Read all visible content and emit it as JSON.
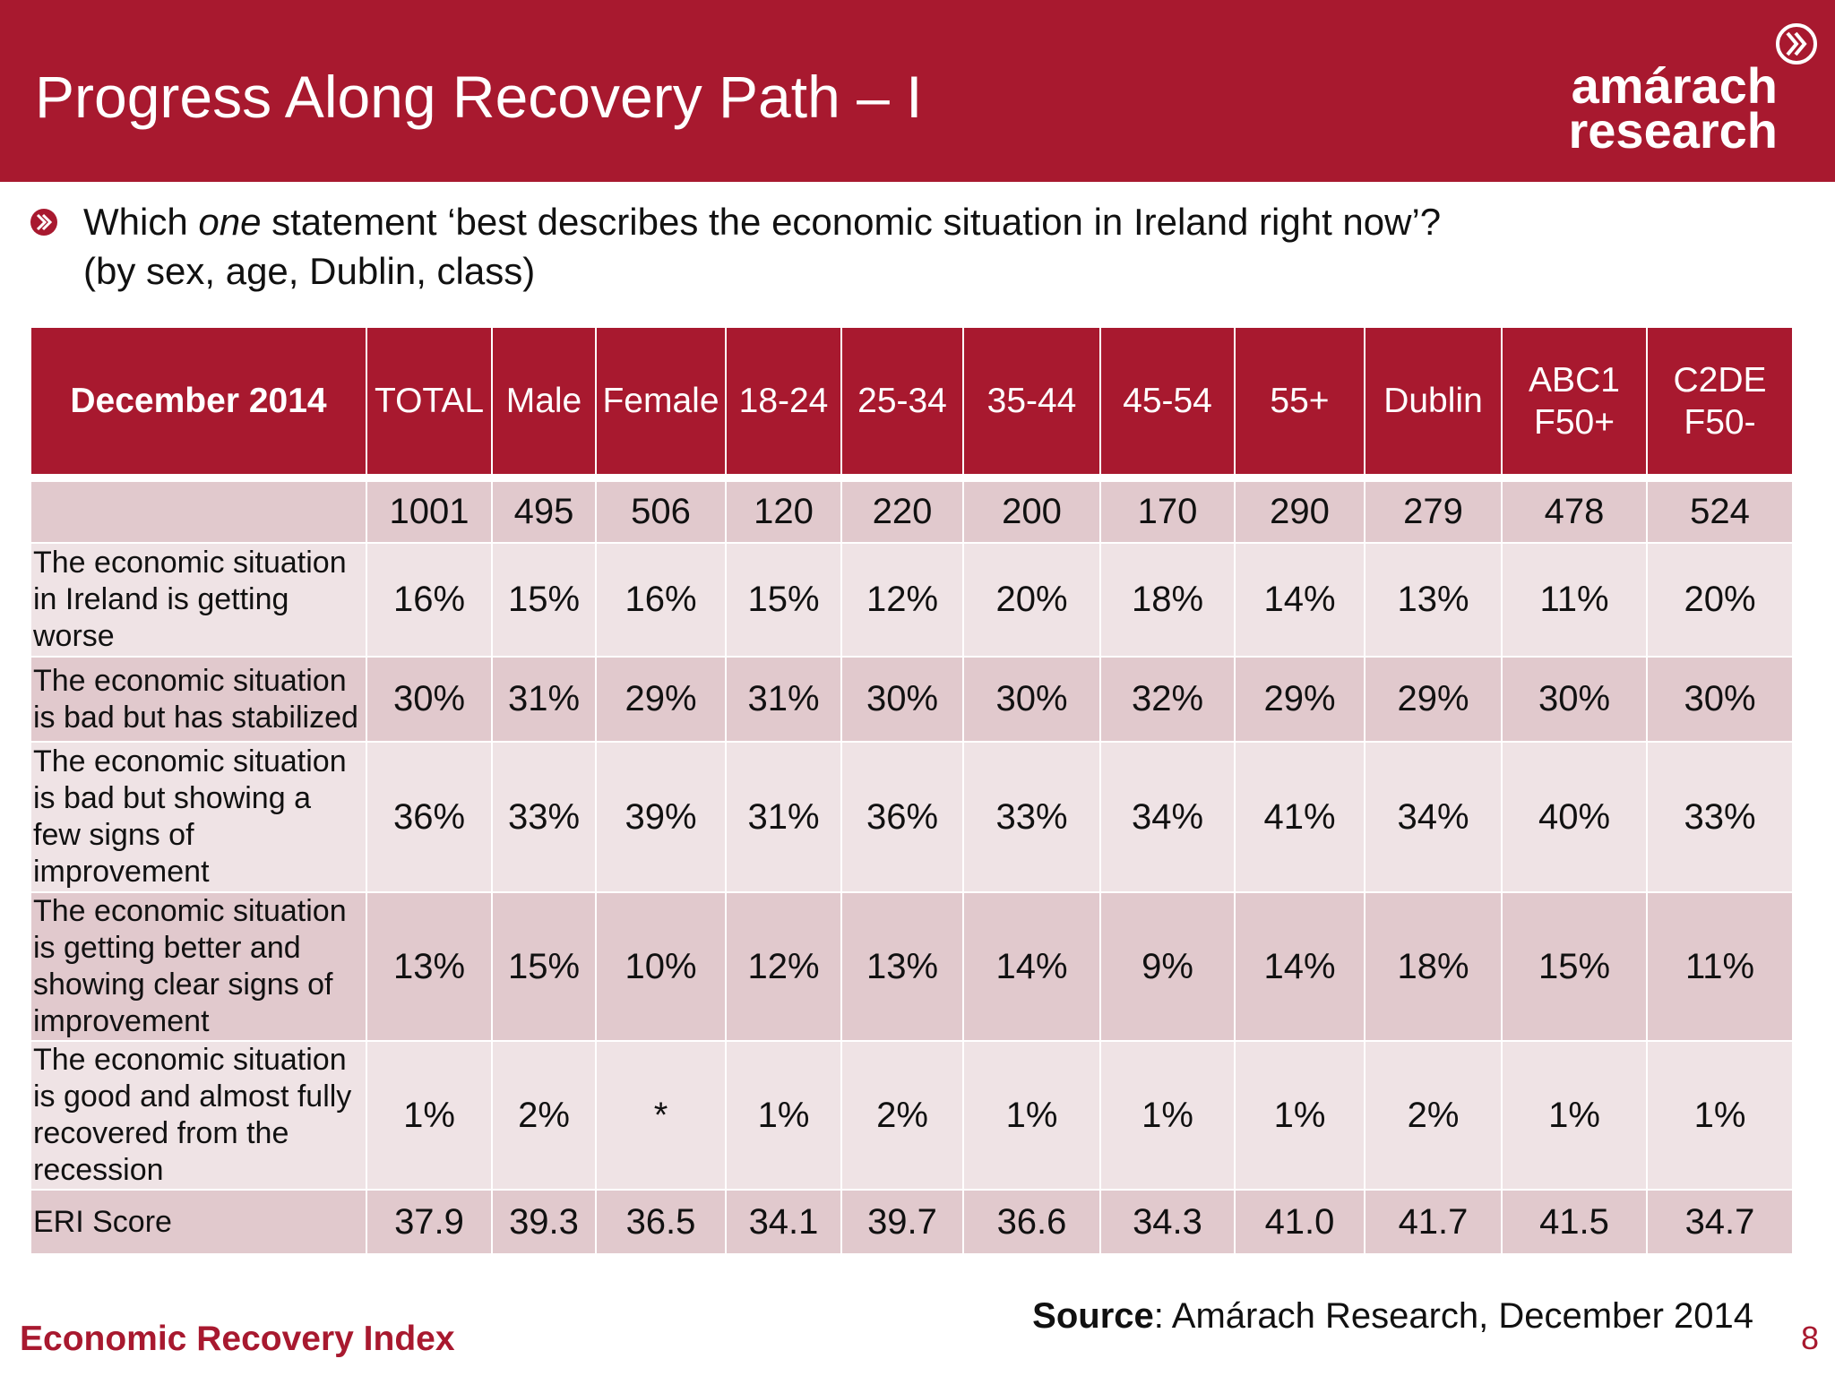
{
  "header": {
    "title": "Progress Along Recovery Path – I",
    "logo": [
      "amárach",
      "research"
    ]
  },
  "question": {
    "lines": [
      [
        "Which ",
        "one",
        " statement ‘best describes the economic situation in Ireland right now’?"
      ],
      [
        "(by sex, age, Dublin, class)"
      ]
    ]
  },
  "table": {
    "columns": [
      "December 2014",
      "TOTAL",
      "Male",
      "Female",
      "18-24",
      "25-34",
      "35-44",
      "45-54",
      "55+",
      "Dublin",
      "ABC1 F50+",
      "C2DE F50-"
    ],
    "rows": [
      [
        "",
        "1001",
        "495",
        "506",
        "120",
        "220",
        "200",
        "170",
        "290",
        "279",
        "478",
        "524"
      ],
      [
        "The economic situation in Ireland is getting worse",
        "16%",
        "15%",
        "16%",
        "15%",
        "12%",
        "20%",
        "18%",
        "14%",
        "13%",
        "11%",
        "20%"
      ],
      [
        "The economic situation is bad but has stabilized",
        "30%",
        "31%",
        "29%",
        "31%",
        "30%",
        "30%",
        "32%",
        "29%",
        "29%",
        "30%",
        "30%"
      ],
      [
        "The economic situation is bad but showing a few signs of improvement",
        "36%",
        "33%",
        "39%",
        "31%",
        "36%",
        "33%",
        "34%",
        "41%",
        "34%",
        "40%",
        "33%"
      ],
      [
        "The economic situation is getting better and showing clear signs of improvement",
        "13%",
        "15%",
        "10%",
        "12%",
        "13%",
        "14%",
        "9%",
        "14%",
        "18%",
        "15%",
        "11%"
      ],
      [
        "The economic situation is good and almost fully recovered from the recession",
        "1%",
        "2%",
        "*",
        "1%",
        "2%",
        "1%",
        "1%",
        "1%",
        "2%",
        "1%",
        "1%"
      ],
      [
        "ERI Score",
        "37.9",
        "39.3",
        "36.5",
        "34.1",
        "39.7",
        "36.6",
        "34.3",
        "41.0",
        "41.7",
        "41.5",
        "34.7"
      ]
    ]
  },
  "footer": {
    "left": "Economic Recovery Index",
    "source": [
      "Source",
      ": Amárach Research, December 2014"
    ],
    "page": "8"
  }
}
